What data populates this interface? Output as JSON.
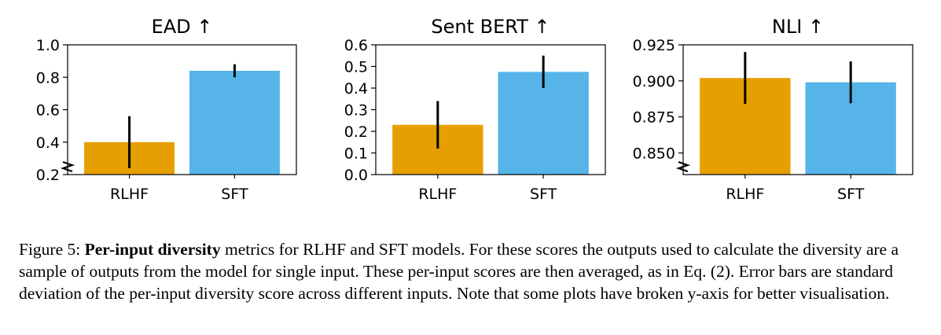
{
  "colors": {
    "rlhf": "#e69f00",
    "sft": "#56b4e9",
    "errorbar": "#000000"
  },
  "chart_data": [
    {
      "type": "bar",
      "title": "EAD  ↑",
      "categories": [
        "RLHF",
        "SFT"
      ],
      "values": [
        0.4,
        0.84
      ],
      "errors": [
        0.16,
        0.04
      ],
      "ylim": [
        0.2,
        1.0
      ],
      "yticks": [
        "0.2",
        "0.4",
        "0.6",
        "0.8",
        "1.0"
      ],
      "ytick_values": [
        0.2,
        0.4,
        0.6,
        0.8,
        1.0
      ],
      "broken_axis": true
    },
    {
      "type": "bar",
      "title": "Sent BERT  ↑",
      "categories": [
        "RLHF",
        "SFT"
      ],
      "values": [
        0.23,
        0.475
      ],
      "errors": [
        0.11,
        0.075
      ],
      "ylim": [
        0.0,
        0.6
      ],
      "yticks": [
        "0.0",
        "0.1",
        "0.2",
        "0.3",
        "0.4",
        "0.5",
        "0.6"
      ],
      "ytick_values": [
        0.0,
        0.1,
        0.2,
        0.3,
        0.4,
        0.5,
        0.6
      ],
      "broken_axis": false
    },
    {
      "type": "bar",
      "title": "NLI  ↑",
      "categories": [
        "RLHF",
        "SFT"
      ],
      "values": [
        0.902,
        0.899
      ],
      "errors": [
        0.018,
        0.0145
      ],
      "ylim": [
        0.835,
        0.925
      ],
      "yticks": [
        "0.850",
        "0.875",
        "0.900",
        "0.925"
      ],
      "ytick_values": [
        0.85,
        0.875,
        0.9,
        0.925
      ],
      "broken_axis": true
    }
  ],
  "caption": {
    "prefix": "Figure 5: ",
    "bold": "Per-input diversity",
    "text": " metrics for RLHF and SFT models. For these scores the outputs used to calculate the diversity are a sample of outputs from the model for single input. These per-input scores are then averaged, as in Eq. (2). Error bars are standard deviation of the per-input diversity score across different inputs. Note that some plots have broken y-axis for better visualisation."
  }
}
